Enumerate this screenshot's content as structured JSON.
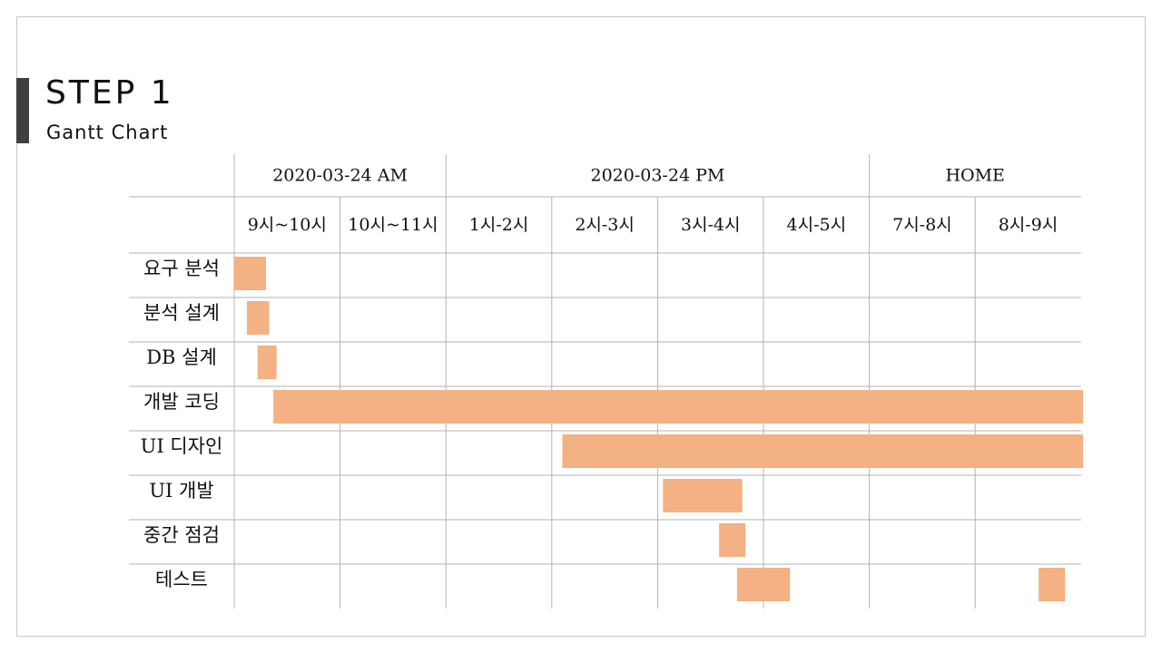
{
  "page": {
    "title": "STEP 1",
    "subtitle": "Gantt Chart"
  },
  "chart_data": {
    "type": "gantt",
    "groups": [
      {
        "label": "2020-03-24 AM",
        "span": [
          "9시~10시",
          "10시~11시"
        ]
      },
      {
        "label": "2020-03-24 PM",
        "span": [
          "1시-2시",
          "2시-3시",
          "3시-4시",
          "4시-5시"
        ]
      },
      {
        "label": "HOME",
        "span": [
          "7시-8시",
          "8시-9시"
        ]
      }
    ],
    "columns": [
      "9시~10시",
      "10시~11시",
      "1시-2시",
      "2시-3시",
      "3시-4시",
      "4시-5시",
      "7시-8시",
      "8시-9시"
    ],
    "tasks": [
      {
        "label": "요구 분석",
        "bars": [
          {
            "start": 0.0,
            "end": 0.3
          }
        ]
      },
      {
        "label": "분석 설계",
        "bars": [
          {
            "start": 0.12,
            "end": 0.33
          }
        ]
      },
      {
        "label": "DB 설계",
        "bars": [
          {
            "start": 0.22,
            "end": 0.4
          }
        ]
      },
      {
        "label": "개발 코딩",
        "bars": [
          {
            "start": 0.37,
            "end": 8.0
          }
        ]
      },
      {
        "label": "UI 디자인",
        "bars": [
          {
            "start": 3.1,
            "end": 8.0
          }
        ]
      },
      {
        "label": "UI 개발",
        "bars": [
          {
            "start": 4.05,
            "end": 4.8
          }
        ]
      },
      {
        "label": "중간 점검",
        "bars": [
          {
            "start": 4.58,
            "end": 4.83
          }
        ]
      },
      {
        "label": "테스트",
        "bars": [
          {
            "start": 4.75,
            "end": 5.25
          },
          {
            "start": 7.6,
            "end": 7.85
          }
        ]
      }
    ],
    "colors": {
      "bar": "#f4b183",
      "grid": "#b3b3b3"
    }
  }
}
